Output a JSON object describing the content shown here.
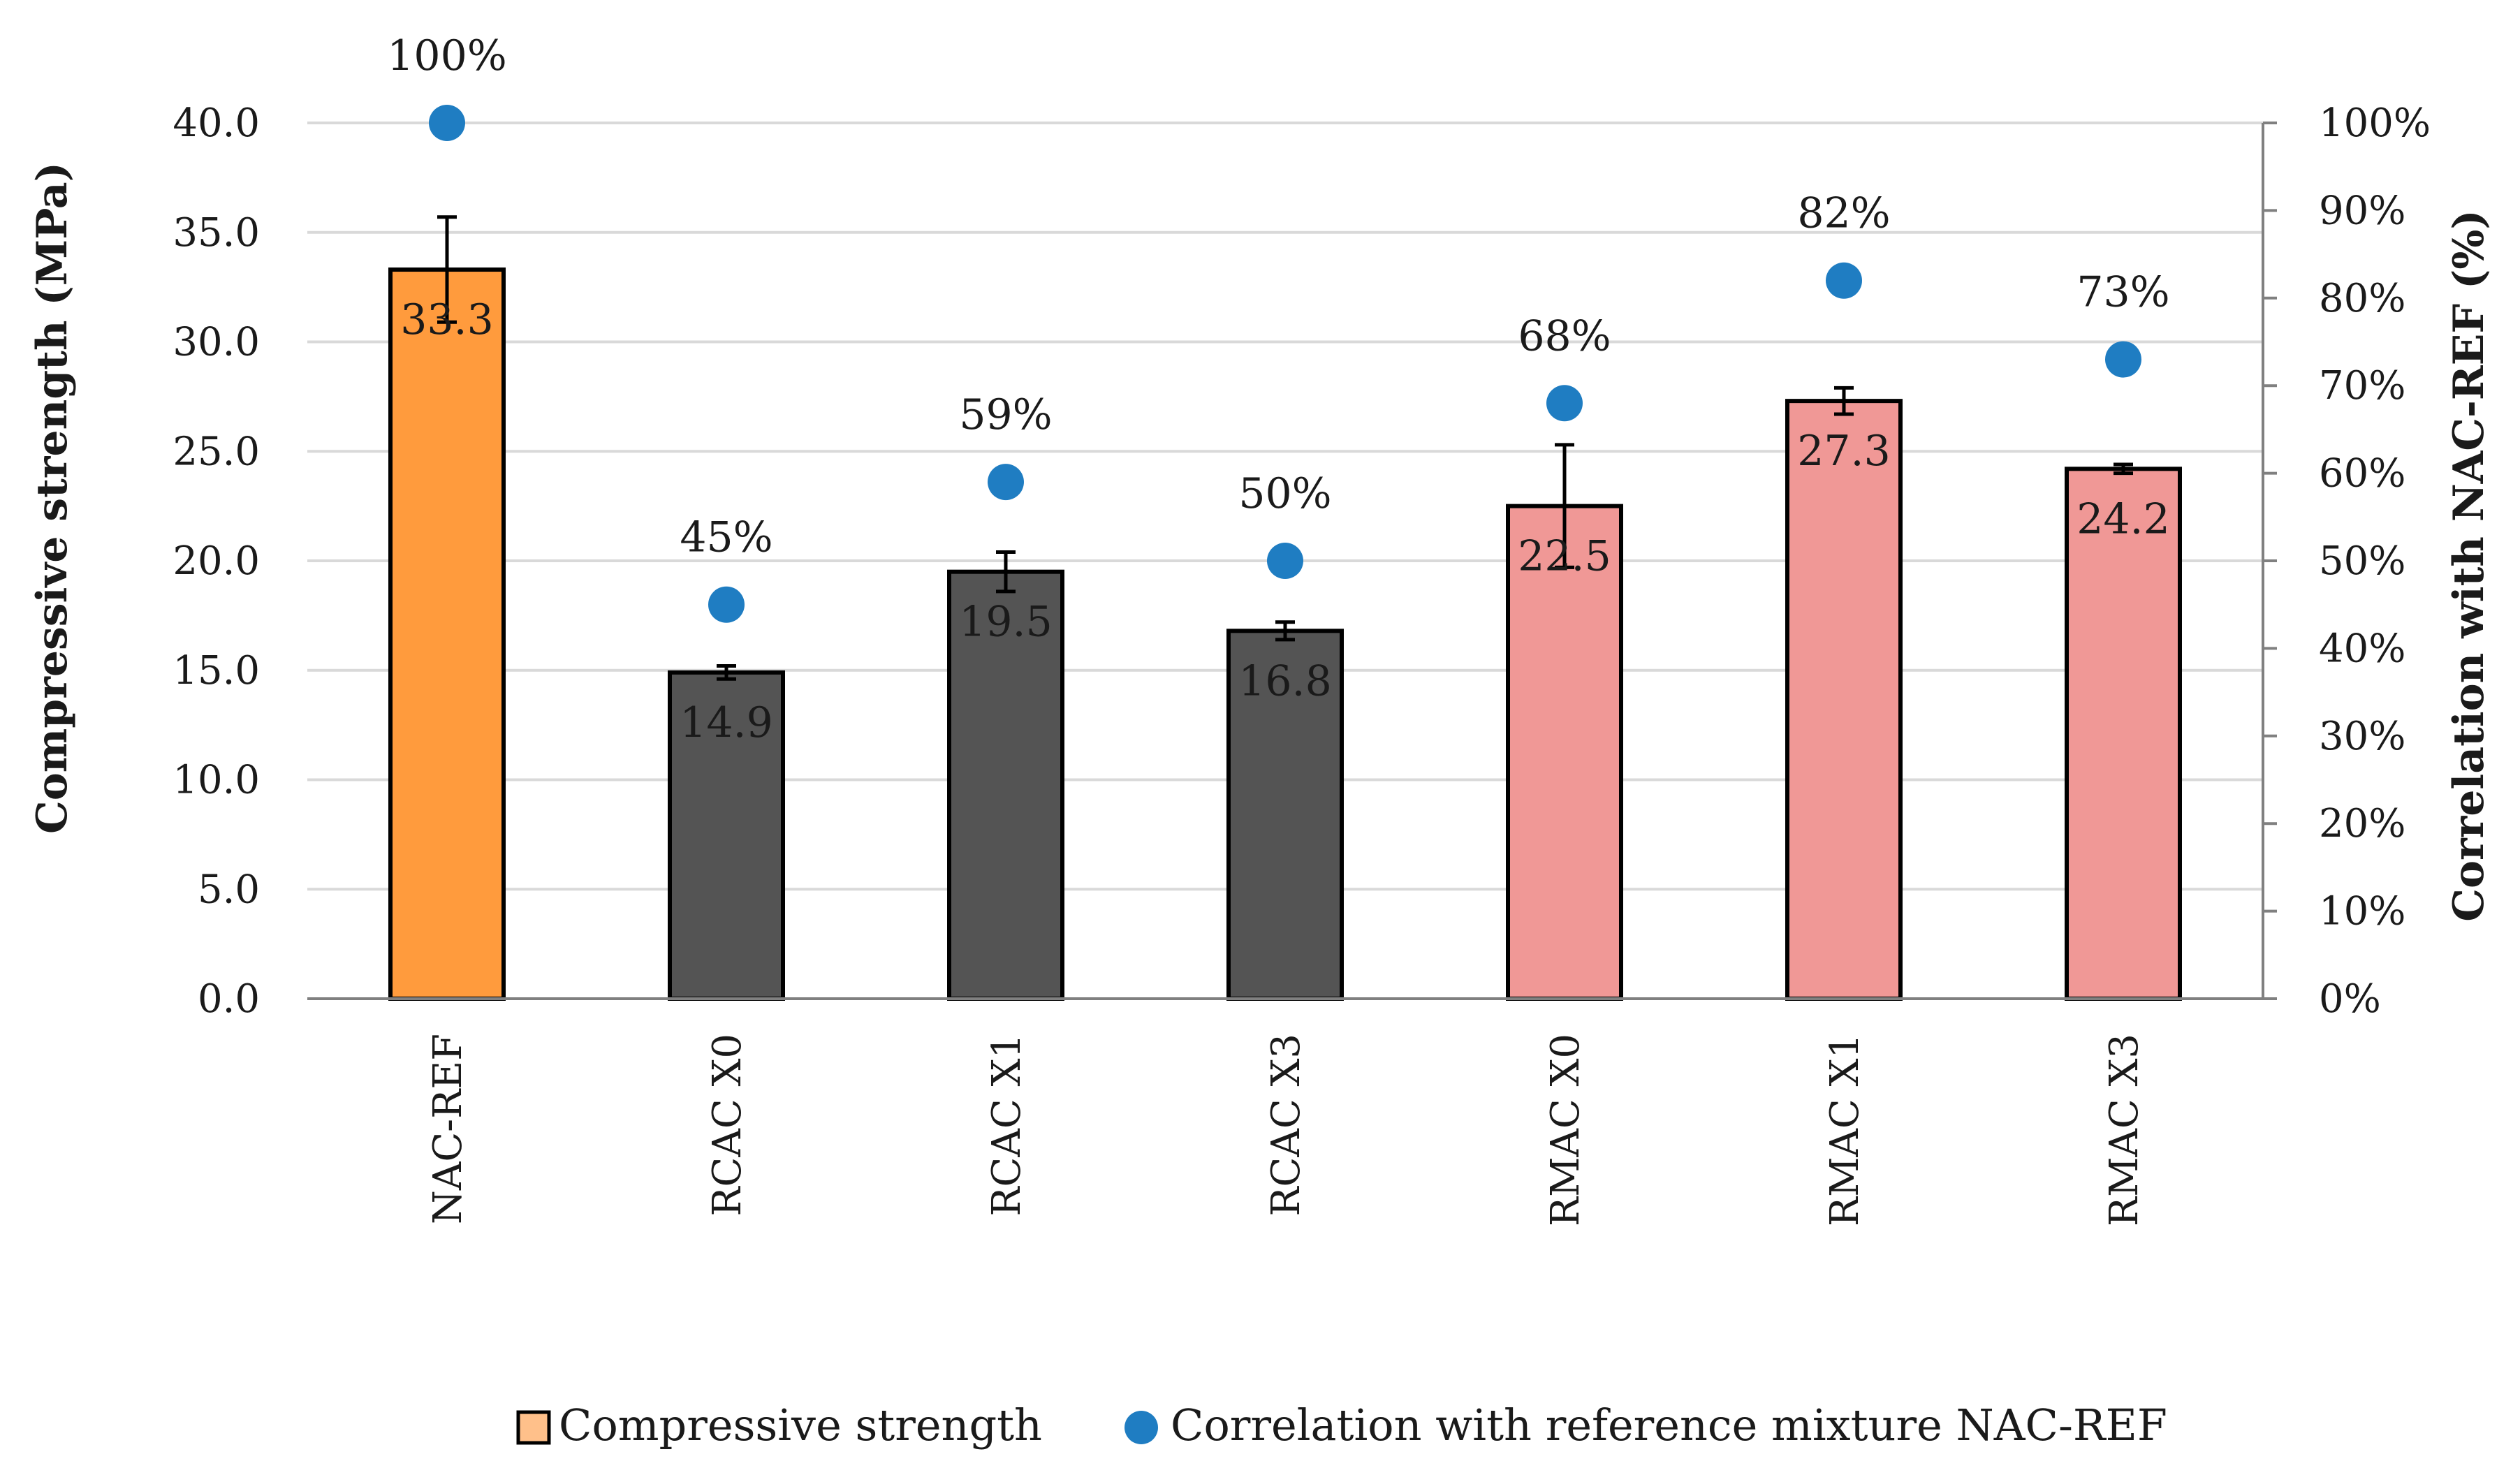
{
  "chart_data": {
    "type": "bar",
    "categories": [
      "NAC-REF",
      "RCAC X0",
      "RCAC X1",
      "RCAC X3",
      "RMAC X0",
      "RMAC X1",
      "RMAC X3"
    ],
    "series": [
      {
        "name": "Compressive strength",
        "axis": "left",
        "values": [
          33.3,
          14.9,
          19.5,
          16.8,
          22.5,
          27.3,
          24.2
        ],
        "labels": [
          "33.3",
          "14.9",
          "19.5",
          "16.8",
          "22.5",
          "27.3",
          "24.2"
        ],
        "error": [
          2.4,
          0.3,
          0.9,
          0.4,
          2.8,
          0.6,
          0.2
        ],
        "colors": [
          "#FF9B3D",
          "#545454",
          "#545454",
          "#545454",
          "#F09896",
          "#F09896",
          "#F09896"
        ]
      },
      {
        "name": "Correlation with reference mixture NAC-REF",
        "axis": "right",
        "type": "scatter",
        "values": [
          100,
          45,
          59,
          50,
          68,
          82,
          73
        ],
        "labels": [
          "100%",
          "45%",
          "59%",
          "50%",
          "68%",
          "82%",
          "73%"
        ],
        "color": "#1F7DC2"
      }
    ],
    "ylabel": "Compressive strength (MPa)",
    "y2label": "Correlation with NAC-REF (%)",
    "ylim": [
      0,
      40
    ],
    "y2lim": [
      0,
      100
    ],
    "yticks": [
      "0.0",
      "5.0",
      "10.0",
      "15.0",
      "20.0",
      "25.0",
      "30.0",
      "35.0",
      "40.0"
    ],
    "y2ticks": [
      "0%",
      "10%",
      "20%",
      "30%",
      "40%",
      "50%",
      "60%",
      "70%",
      "80%",
      "90%",
      "100%"
    ],
    "grid": true,
    "legend": {
      "position": "bottom",
      "items": [
        {
          "label": "Compressive strength",
          "color": "#FFC08A",
          "marker": "square"
        },
        {
          "label": "Correlation with reference mixture NAC-REF",
          "color": "#1F7DC2",
          "marker": "circle"
        }
      ]
    }
  }
}
